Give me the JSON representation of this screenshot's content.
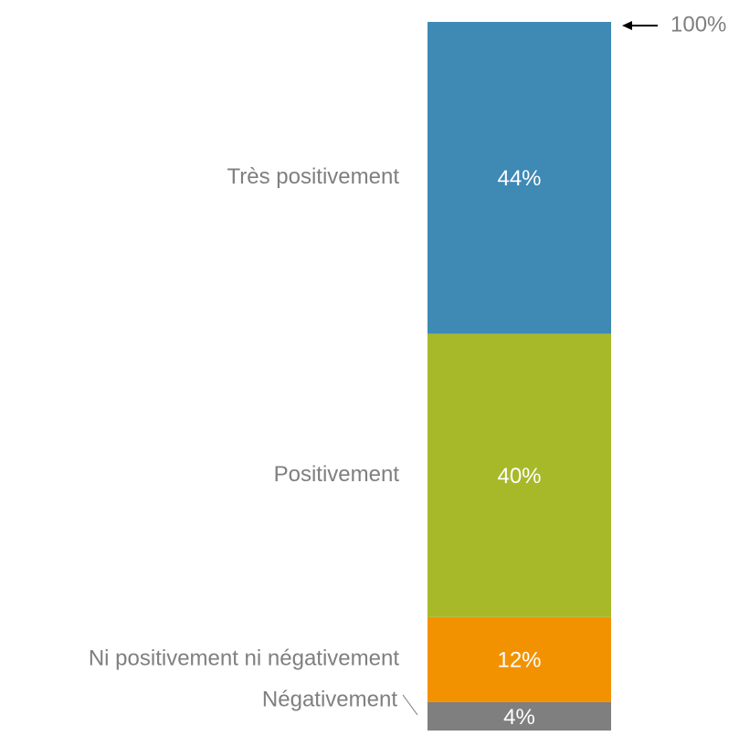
{
  "chart_data": {
    "type": "stacked-bar",
    "series": [
      {
        "name": "Négativement",
        "color": "#7f7f7f",
        "values": [
          4
        ],
        "value_labels": [
          "4%"
        ]
      },
      {
        "name": "Ni positivement ni négativement",
        "color": "#f39200",
        "values": [
          12
        ],
        "value_labels": [
          "12%"
        ]
      },
      {
        "name": "Positivement",
        "color": "#a7b929",
        "values": [
          40
        ],
        "value_labels": [
          "40%"
        ]
      },
      {
        "name": "Très positivement",
        "color": "#3f89b5",
        "values": [
          44
        ],
        "value_labels": [
          "44%"
        ]
      }
    ],
    "ylim": [
      0,
      100
    ],
    "annotations": [
      {
        "value": 100,
        "label": "100%"
      }
    ]
  }
}
